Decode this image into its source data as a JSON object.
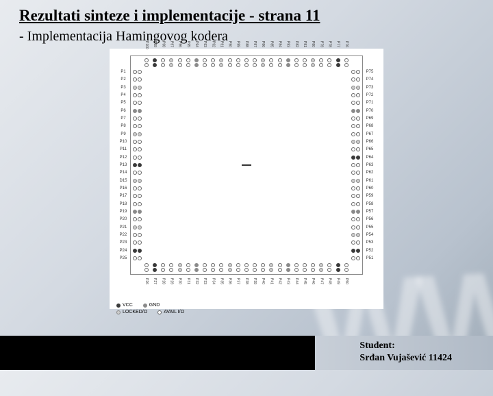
{
  "title": "Rezultati sinteze i implementacije - strana 11",
  "subtitle": "-  Implementacija Hamingovog kodera",
  "student_label": "Student:",
  "student_name": "Srđan Vujašević 11424",
  "bg_watermark": "WW",
  "legend": {
    "vcc": "VCC",
    "gnd": "GND",
    "locked": "LOCKED/O",
    "avail": "AVAIL I/O"
  },
  "left_labels": [
    "P1",
    "P2",
    "P3",
    "P4",
    "P5",
    "P6",
    "P7",
    "P8",
    "P9",
    "P10",
    "P11",
    "P12",
    "P13",
    "P14",
    "D15",
    "P16",
    "P17",
    "P18",
    "P19",
    "P20",
    "P21",
    "P22",
    "P23",
    "P24",
    "P25"
  ],
  "right_labels": [
    "P75",
    "P74",
    "P73",
    "P72",
    "P71",
    "P70",
    "P69",
    "P68",
    "P67",
    "P66",
    "P65",
    "P64",
    "P63",
    "P62",
    "P61",
    "P60",
    "P59",
    "P58",
    "P57",
    "P56",
    "P55",
    "P54",
    "P53",
    "P52",
    "P51"
  ],
  "top_labels": [
    "P100",
    "P99",
    "P98",
    "P97",
    "P96",
    "P95",
    "P94",
    "P93",
    "P92",
    "P91",
    "P90",
    "P89",
    "P88",
    "P87",
    "P86",
    "P85",
    "P84",
    "P83",
    "P82",
    "P81",
    "P80",
    "P79",
    "P78",
    "P77",
    "P76"
  ],
  "bottom_labels": [
    "P26",
    "P27",
    "P28",
    "P29",
    "P30",
    "P31",
    "P32",
    "P33",
    "P34",
    "P35",
    "P36",
    "P37",
    "P38",
    "P39",
    "P40",
    "P41",
    "P42",
    "P43",
    "P44",
    "P45",
    "P46",
    "P47",
    "P48",
    "P49",
    "P50"
  ],
  "top_pins": [
    "av",
    "vcc",
    "av",
    "lk",
    "av",
    "av",
    "gnd",
    "av",
    "av",
    "lk",
    "av",
    "av",
    "av",
    "av",
    "lk",
    "av",
    "av",
    "gnd",
    "av",
    "av",
    "lk",
    "av",
    "av",
    "vcc",
    "av"
  ],
  "bottom_pins": [
    "av",
    "vcc",
    "av",
    "av",
    "lk",
    "av",
    "gnd",
    "av",
    "av",
    "av",
    "lk",
    "av",
    "av",
    "av",
    "av",
    "lk",
    "av",
    "gnd",
    "av",
    "av",
    "av",
    "lk",
    "av",
    "vcc",
    "av"
  ],
  "left_pins": [
    "av",
    "av",
    "lk",
    "av",
    "av",
    "gnd",
    "av",
    "av",
    "lk",
    "av",
    "av",
    "av",
    "vcc",
    "av",
    "lk",
    "av",
    "av",
    "av",
    "gnd",
    "av",
    "lk",
    "av",
    "av",
    "vcc",
    "av"
  ],
  "right_pins": [
    "av",
    "av",
    "lk",
    "av",
    "av",
    "gnd",
    "av",
    "av",
    "av",
    "lk",
    "av",
    "vcc",
    "av",
    "av",
    "lk",
    "av",
    "av",
    "av",
    "gnd",
    "av",
    "av",
    "lk",
    "av",
    "vcc",
    "av"
  ],
  "colors": {
    "vcc": "#3a3a3a",
    "gnd": "#8a8a8a",
    "locked": "#cccccc",
    "avail": "#ffffff",
    "border": "#666666"
  }
}
